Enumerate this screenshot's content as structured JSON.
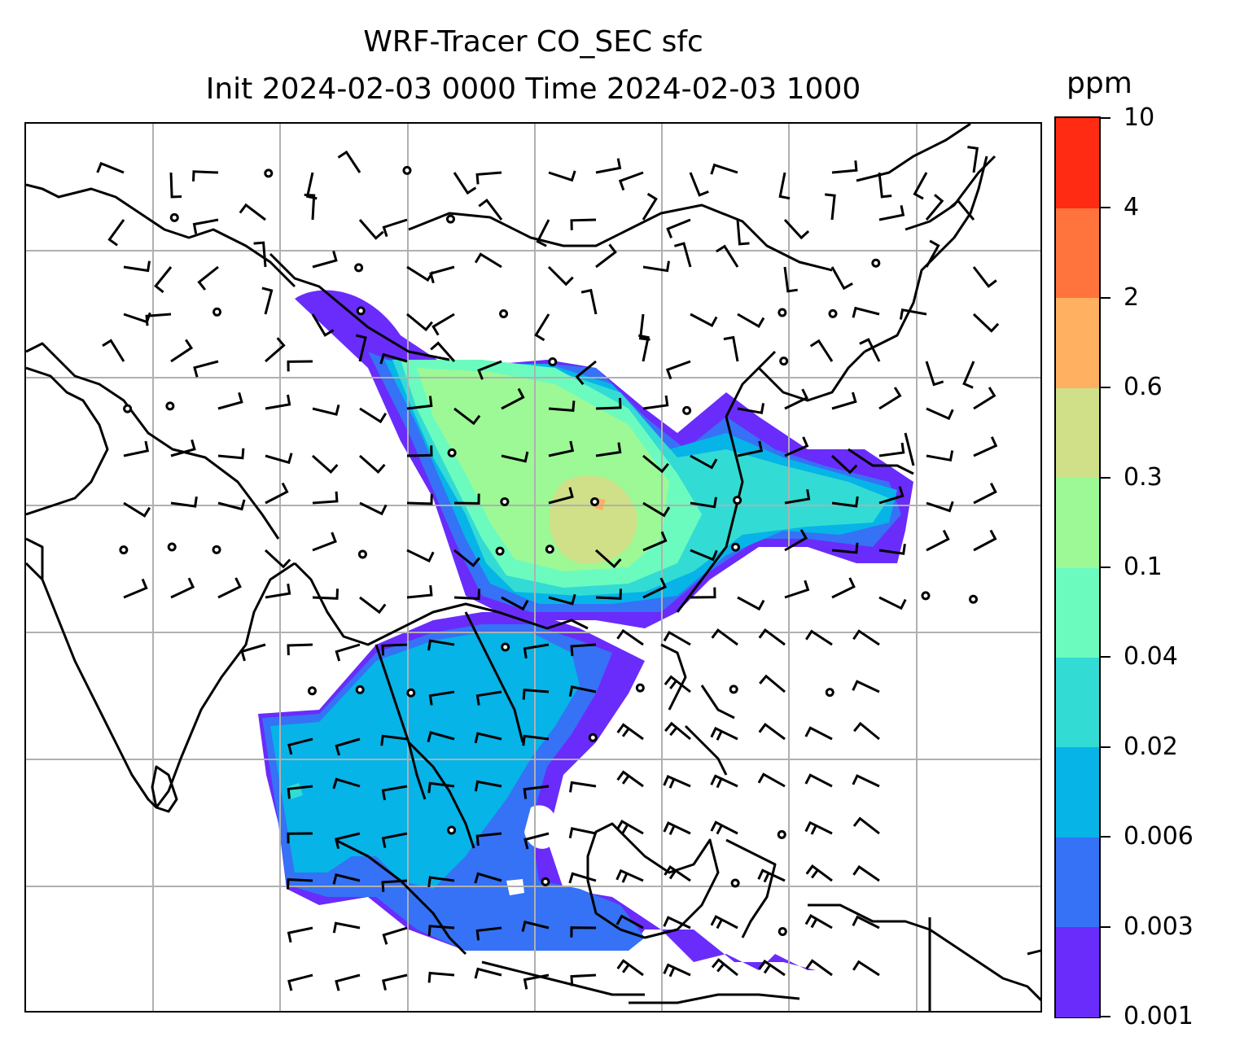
{
  "title": {
    "line1": "WRF-Tracer CO_SEC sfc",
    "line2": "Init 2024-02-03 0000 Time 2024-02-03 1000"
  },
  "colorbar": {
    "unit": "ppm",
    "levels": [
      "0.001",
      "0.003",
      "0.006",
      "0.02",
      "0.04",
      "0.1",
      "0.3",
      "0.6",
      "2",
      "4",
      "10"
    ],
    "colors": [
      "#6a2cfb",
      "#3572f5",
      "#06b4e8",
      "#32dcd4",
      "#6cfbbf",
      "#9cf995",
      "#cfe088",
      "#ffb060",
      "#ff733c",
      "#ff2b12"
    ]
  },
  "map": {
    "field": "CO_SEC surface concentration",
    "overlays": [
      "coastlines",
      "country borders",
      "wind barbs",
      "gridlines"
    ],
    "grid": true
  }
}
